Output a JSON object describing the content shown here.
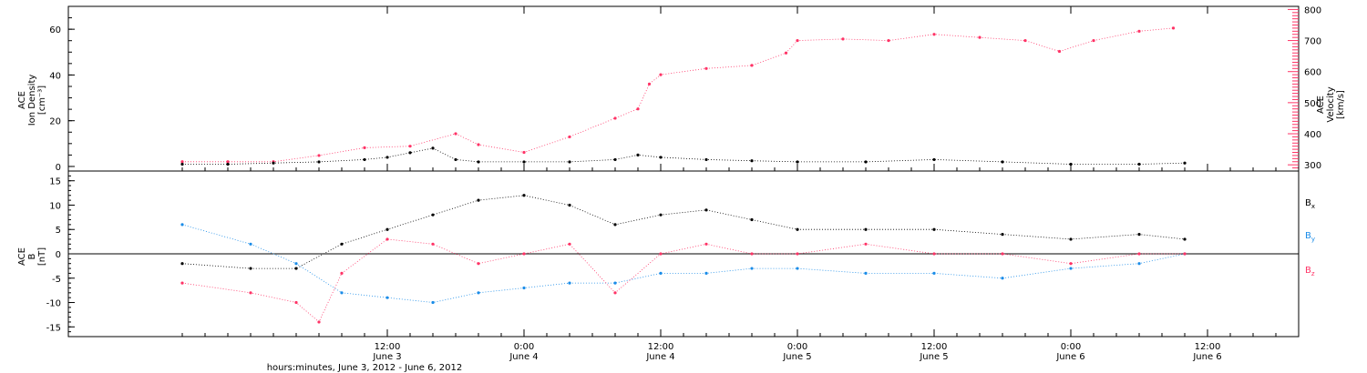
{
  "chart_data": [
    {
      "type": "scatter",
      "panel": "top",
      "title": "",
      "ylabel_left": [
        "ACE",
        "Ion Density",
        "[cm⁻³]"
      ],
      "ylabel_right": [
        "ACE",
        "Velocity",
        "[km/s]"
      ],
      "ylim_left": [
        -2,
        70
      ],
      "ylim_right": [
        280,
        810
      ],
      "left_ticks": [
        "0",
        "20",
        "40",
        "60"
      ],
      "right_ticks": [
        "300",
        "400",
        "500",
        "600",
        "700",
        "800"
      ],
      "colors": {
        "density": "#000000",
        "velocity": "#ff3366"
      },
      "series": [
        {
          "axis": "left",
          "color": "#000000",
          "x": [
            "2012-06-02T18:00",
            "2012-06-02T22:00",
            "2012-06-03T02:00",
            "2012-06-03T06:00",
            "2012-06-03T10:00",
            "2012-06-03T12:00",
            "2012-06-03T14:00",
            "2012-06-03T16:00",
            "2012-06-03T18:00",
            "2012-06-03T20:00",
            "2012-06-04T00:00",
            "2012-06-04T04:00",
            "2012-06-04T08:00",
            "2012-06-04T10:00",
            "2012-06-04T12:00",
            "2012-06-04T16:00",
            "2012-06-04T20:00",
            "2012-06-05T00:00",
            "2012-06-05T06:00",
            "2012-06-05T12:00",
            "2012-06-05T18:00",
            "2012-06-06T00:00",
            "2012-06-06T06:00",
            "2012-06-06T10:00"
          ],
          "values": [
            1,
            1,
            1.5,
            2,
            3,
            4,
            6,
            8,
            3,
            2,
            2,
            2,
            3,
            5,
            4,
            3,
            2.5,
            2,
            2,
            3,
            2,
            1,
            1,
            1.5
          ]
        },
        {
          "axis": "right",
          "color": "#ff3366",
          "x": [
            "2012-06-02T18:00",
            "2012-06-02T22:00",
            "2012-06-03T02:00",
            "2012-06-03T06:00",
            "2012-06-03T10:00",
            "2012-06-03T14:00",
            "2012-06-03T18:00",
            "2012-06-03T20:00",
            "2012-06-04T00:00",
            "2012-06-04T04:00",
            "2012-06-04T08:00",
            "2012-06-04T10:00",
            "2012-06-04T11:00",
            "2012-06-04T12:00",
            "2012-06-04T16:00",
            "2012-06-04T20:00",
            "2012-06-04T23:00",
            "2012-06-05T00:00",
            "2012-06-05T04:00",
            "2012-06-05T08:00",
            "2012-06-05T12:00",
            "2012-06-05T16:00",
            "2012-06-05T20:00",
            "2012-06-05T23:00",
            "2012-06-06T02:00",
            "2012-06-06T06:00",
            "2012-06-06T09:00"
          ],
          "values": [
            310,
            310,
            310,
            330,
            355,
            360,
            400,
            365,
            340,
            390,
            450,
            480,
            560,
            590,
            610,
            620,
            660,
            700,
            705,
            700,
            720,
            710,
            700,
            665,
            700,
            730,
            740
          ]
        }
      ]
    },
    {
      "type": "scatter",
      "panel": "bottom",
      "title": "",
      "ylabel": [
        "ACE",
        "B",
        "[nT]"
      ],
      "ylim": [
        -17,
        17
      ],
      "y_ticks": [
        "-15",
        "-10",
        "-5",
        "0",
        "5",
        "10",
        "15"
      ],
      "xlabel": "hours:minutes, June  3, 2012 - June  6, 2012",
      "x_ticks": [
        {
          "time": "12:00",
          "date": "June 3"
        },
        {
          "time": "0:00",
          "date": "June 4"
        },
        {
          "time": "12:00",
          "date": "June 4"
        },
        {
          "time": "0:00",
          "date": "June 5"
        },
        {
          "time": "12:00",
          "date": "June 5"
        },
        {
          "time": "0:00",
          "date": "June 6"
        },
        {
          "time": "12:00",
          "date": "June 6"
        }
      ],
      "series": [
        {
          "name": "Bx",
          "label_main": "B",
          "label_sub": "x",
          "color": "#000000",
          "x": [
            "2012-06-02T18:00",
            "2012-06-03T00:00",
            "2012-06-03T04:00",
            "2012-06-03T08:00",
            "2012-06-03T12:00",
            "2012-06-03T16:00",
            "2012-06-03T20:00",
            "2012-06-04T00:00",
            "2012-06-04T04:00",
            "2012-06-04T08:00",
            "2012-06-04T12:00",
            "2012-06-04T16:00",
            "2012-06-04T20:00",
            "2012-06-05T00:00",
            "2012-06-05T06:00",
            "2012-06-05T12:00",
            "2012-06-05T18:00",
            "2012-06-06T00:00",
            "2012-06-06T06:00",
            "2012-06-06T10:00"
          ],
          "values": [
            -2,
            -3,
            -3,
            2,
            5,
            8,
            11,
            12,
            10,
            6,
            8,
            9,
            7,
            5,
            5,
            5,
            4,
            3,
            4,
            3
          ]
        },
        {
          "name": "By",
          "label_main": "B",
          "label_sub": "y",
          "color": "#1a8ce8",
          "x": [
            "2012-06-02T18:00",
            "2012-06-03T00:00",
            "2012-06-03T04:00",
            "2012-06-03T08:00",
            "2012-06-03T12:00",
            "2012-06-03T16:00",
            "2012-06-03T20:00",
            "2012-06-04T00:00",
            "2012-06-04T04:00",
            "2012-06-04T08:00",
            "2012-06-04T12:00",
            "2012-06-04T16:00",
            "2012-06-04T20:00",
            "2012-06-05T00:00",
            "2012-06-05T06:00",
            "2012-06-05T12:00",
            "2012-06-05T18:00",
            "2012-06-06T00:00",
            "2012-06-06T06:00",
            "2012-06-06T10:00"
          ],
          "values": [
            6,
            2,
            -2,
            -8,
            -9,
            -10,
            -8,
            -7,
            -6,
            -6,
            -4,
            -4,
            -3,
            -3,
            -4,
            -4,
            -5,
            -3,
            -2,
            0
          ]
        },
        {
          "name": "Bz",
          "label_main": "B",
          "label_sub": "z",
          "color": "#ff3366",
          "x": [
            "2012-06-02T18:00",
            "2012-06-03T00:00",
            "2012-06-03T04:00",
            "2012-06-03T06:00",
            "2012-06-03T08:00",
            "2012-06-03T12:00",
            "2012-06-03T16:00",
            "2012-06-03T20:00",
            "2012-06-04T00:00",
            "2012-06-04T04:00",
            "2012-06-04T08:00",
            "2012-06-04T12:00",
            "2012-06-04T16:00",
            "2012-06-04T20:00",
            "2012-06-05T00:00",
            "2012-06-05T06:00",
            "2012-06-05T12:00",
            "2012-06-05T18:00",
            "2012-06-06T00:00",
            "2012-06-06T06:00",
            "2012-06-06T10:00"
          ],
          "values": [
            -6,
            -8,
            -10,
            -14,
            -4,
            3,
            2,
            -2,
            0,
            2,
            -8,
            0,
            2,
            0,
            0,
            2,
            0,
            0,
            -2,
            0,
            0
          ]
        }
      ]
    }
  ]
}
